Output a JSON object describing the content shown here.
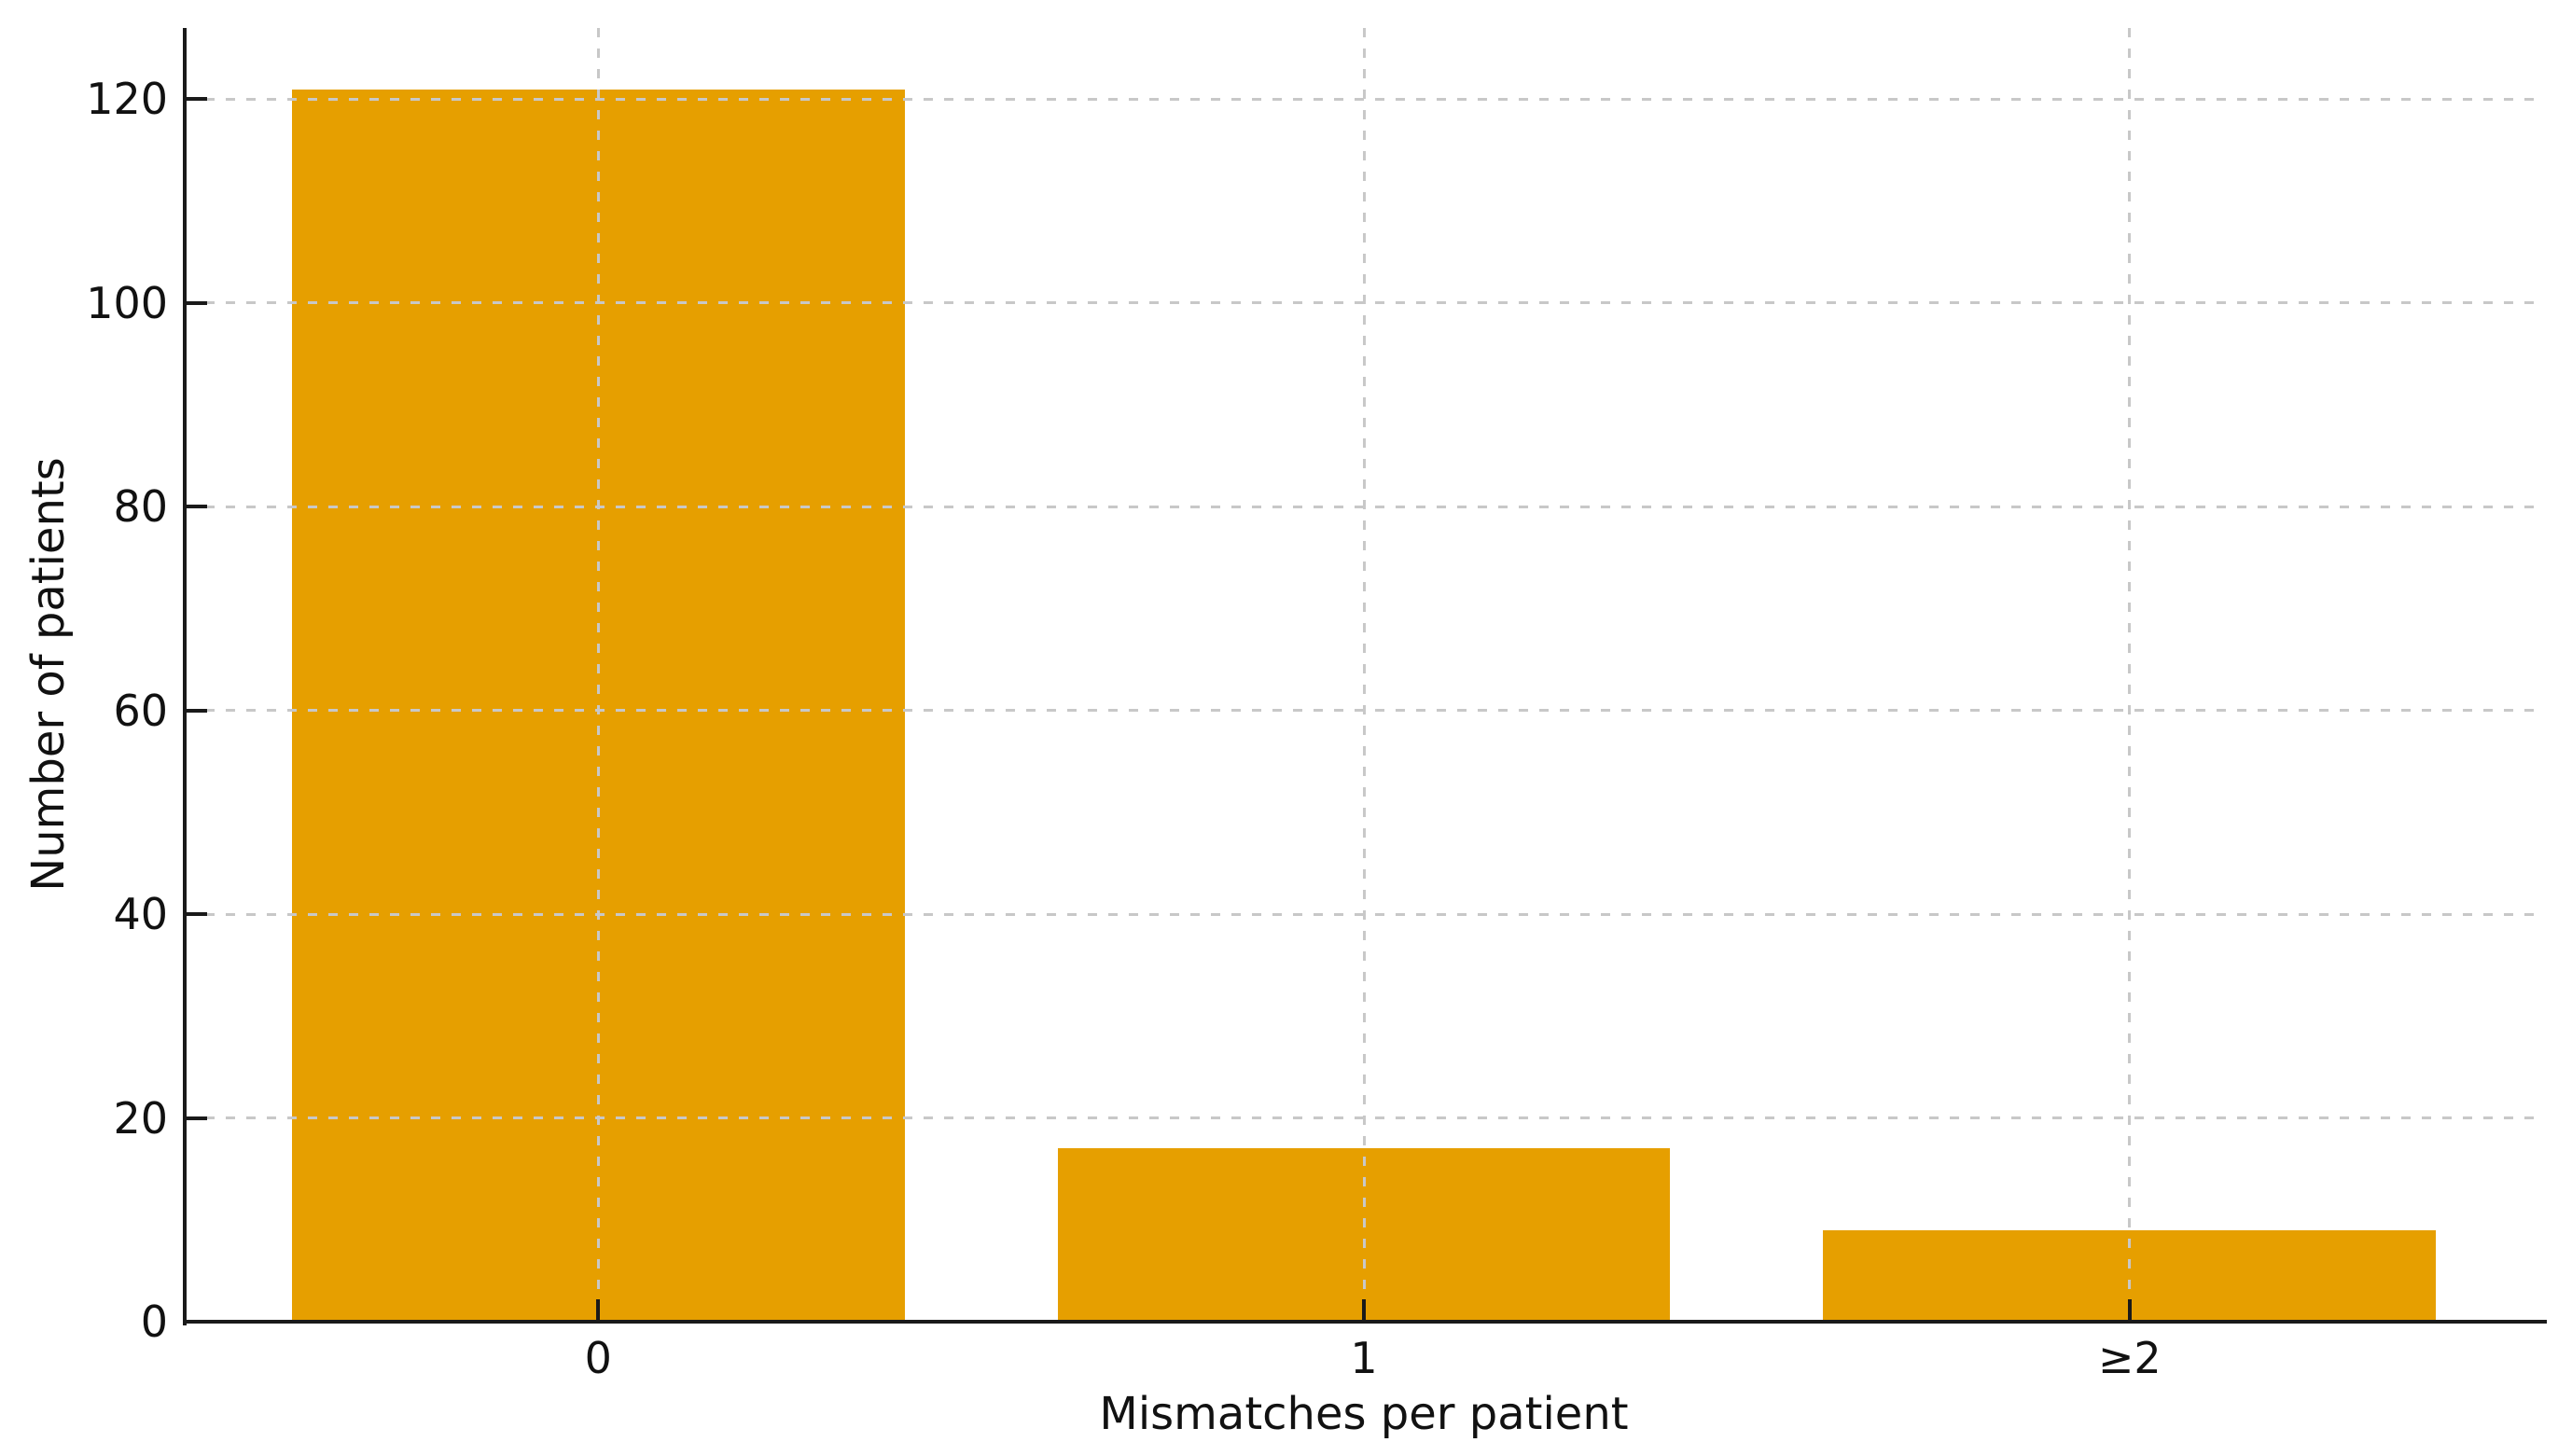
{
  "figure": {
    "background_color": "#ffffff",
    "axis_color": "#1a1a1a",
    "text_color": "#111111",
    "grid_color": "#c8c8c8",
    "grid_style": "dashed"
  },
  "chart_data": {
    "type": "bar",
    "categories": [
      "0",
      "1",
      "≥2"
    ],
    "values": [
      121,
      17,
      9
    ],
    "title": "",
    "xlabel": "Mismatches per patient",
    "ylabel": "Number of patients",
    "yticks": [
      0,
      20,
      40,
      60,
      80,
      100,
      120
    ],
    "ylim": [
      0,
      127
    ],
    "bar_color": "#E69F00",
    "bar_width_fraction": 0.8,
    "grid": true,
    "legend_position": "none"
  }
}
